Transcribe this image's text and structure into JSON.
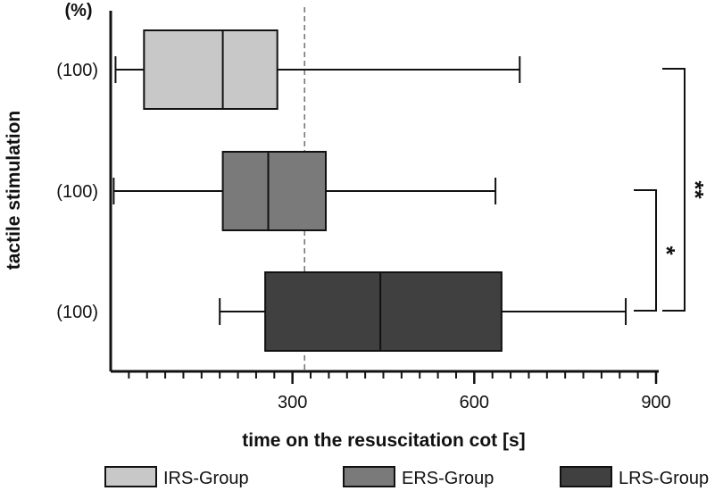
{
  "chart_data": {
    "type": "boxplot",
    "orientation": "horizontal",
    "xlabel": "time on the resuscitation cot [s]",
    "ylabel": "tactile stimulation",
    "yheader": "(%)",
    "xlim": [
      0,
      900
    ],
    "xticks": [
      300,
      600,
      900
    ],
    "reference_line": 320,
    "series": [
      {
        "name": "IRS-Group",
        "row_label": "(100)",
        "color": "#c8c8c8",
        "whisker_low": 8,
        "q1": 55,
        "median": 185,
        "q3": 275,
        "whisker_high": 675
      },
      {
        "name": "ERS-Group",
        "row_label": "(100)",
        "color": "#7a7a7a",
        "whisker_low": 5,
        "q1": 185,
        "median": 260,
        "q3": 355,
        "whisker_high": 635
      },
      {
        "name": "LRS-Group",
        "row_label": "(100)",
        "color": "#404040",
        "whisker_low": 180,
        "q1": 255,
        "median": 445,
        "q3": 645,
        "whisker_high": 850
      }
    ],
    "significance": [
      {
        "from": "ERS-Group",
        "to": "LRS-Group",
        "label": "*"
      },
      {
        "from": "IRS-Group",
        "to": "LRS-Group",
        "label": "**"
      }
    ]
  }
}
